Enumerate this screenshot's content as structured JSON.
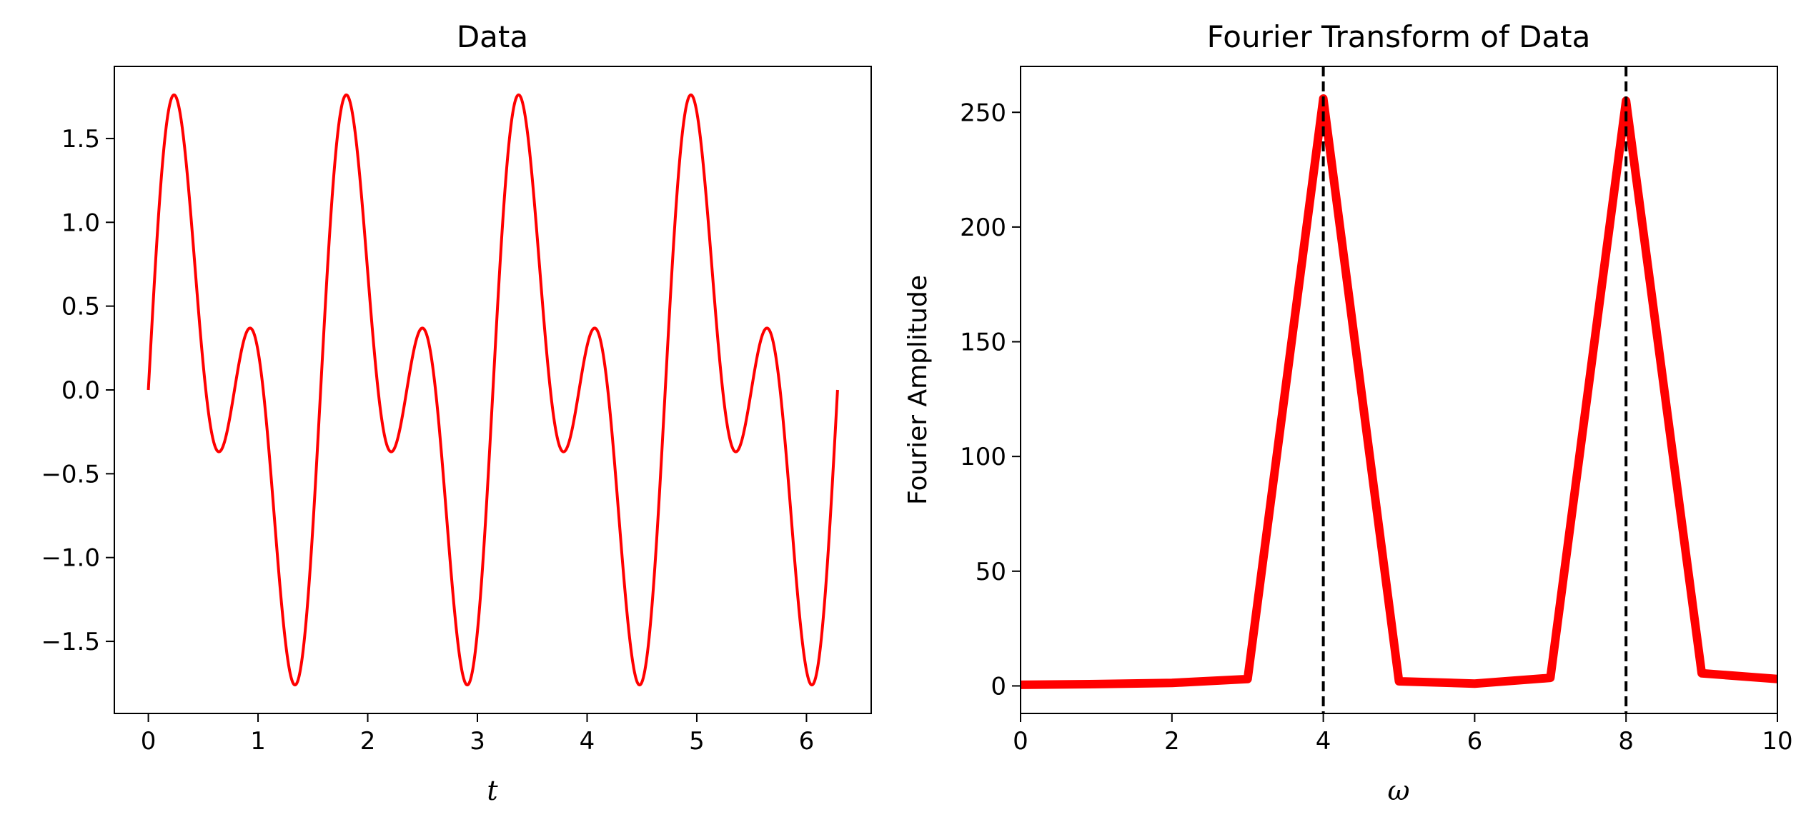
{
  "chart_data": [
    {
      "type": "line",
      "title": "Data",
      "xlabel": "t",
      "ylabel": "",
      "xlim": [
        -0.31,
        6.59
      ],
      "ylim": [
        -1.93,
        1.93
      ],
      "xticks": [
        0,
        1,
        2,
        3,
        4,
        5,
        6
      ],
      "xtick_labels": [
        "0",
        "1",
        "2",
        "3",
        "4",
        "5",
        "6"
      ],
      "yticks": [
        -1.5,
        -1.0,
        -0.5,
        0.0,
        0.5,
        1.0,
        1.5
      ],
      "ytick_labels": [
        "−1.5",
        "−1.0",
        "−0.5",
        "0.0",
        "0.5",
        "1.0",
        "1.5"
      ],
      "grid": false,
      "series": [
        {
          "formula": "sin(4t) + sin(8t)",
          "t_range": [
            0,
            6.2832
          ],
          "color": "#ff0000"
        }
      ]
    },
    {
      "type": "line",
      "title": "Fourier Transform of Data",
      "xlabel": "ω",
      "ylabel": "Fourier Amplitude",
      "xlim": [
        0,
        10
      ],
      "ylim": [
        -12,
        270
      ],
      "xticks": [
        0,
        2,
        4,
        6,
        8,
        10
      ],
      "xtick_labels": [
        "0",
        "2",
        "4",
        "6",
        "8",
        "10"
      ],
      "yticks": [
        0,
        50,
        100,
        150,
        200,
        250
      ],
      "ytick_labels": [
        "0",
        "50",
        "100",
        "150",
        "200",
        "250"
      ],
      "grid": false,
      "series": [
        {
          "x": [
            0,
            1,
            2,
            3,
            4,
            5,
            6,
            7,
            8,
            9,
            10
          ],
          "values": [
            0.5,
            0.8,
            1.3,
            3,
            256,
            2,
            1,
            3.5,
            255,
            5.5,
            3
          ],
          "color": "#ff0000"
        }
      ],
      "vlines": [
        {
          "x": 4,
          "style": "dashed",
          "color": "#000000"
        },
        {
          "x": 8,
          "style": "dashed",
          "color": "#000000"
        }
      ]
    }
  ]
}
